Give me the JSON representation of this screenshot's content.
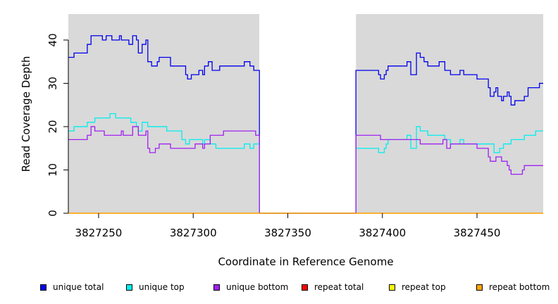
{
  "chart_data": {
    "type": "line",
    "xlabel": "Coordinate in Reference Genome",
    "ylabel": "Read Coverage Depth",
    "xlim": [
      3827234,
      3827485
    ],
    "ylim": [
      0,
      46
    ],
    "x_ticks": [
      3827250,
      3827300,
      3827350,
      3827400,
      3827450
    ],
    "x_tick_labels": [
      "3827250",
      "3827300",
      "3827350",
      "3827400",
      "3827450"
    ],
    "y_ticks": [
      0,
      10,
      20,
      30,
      40
    ],
    "y_tick_labels": [
      "0",
      "10",
      "20",
      "30",
      "40"
    ],
    "grid": false,
    "background": "#d9d9d9",
    "blank_region": [
      3827335,
      3827386
    ],
    "legend_position": "bottom",
    "series": [
      {
        "name": "unique total",
        "color": "#0000ee",
        "points": [
          [
            3827234,
            36
          ],
          [
            3827237,
            37
          ],
          [
            3827244,
            39
          ],
          [
            3827246,
            41
          ],
          [
            3827252,
            40
          ],
          [
            3827254,
            41
          ],
          [
            3827257,
            40
          ],
          [
            3827261,
            41
          ],
          [
            3827262,
            40
          ],
          [
            3827266,
            39
          ],
          [
            3827268,
            41
          ],
          [
            3827270,
            40
          ],
          [
            3827271,
            37
          ],
          [
            3827273,
            39
          ],
          [
            3827275,
            40
          ],
          [
            3827276,
            35
          ],
          [
            3827278,
            34
          ],
          [
            3827281,
            35
          ],
          [
            3827282,
            36
          ],
          [
            3827288,
            34
          ],
          [
            3827296,
            32
          ],
          [
            3827297,
            31
          ],
          [
            3827299,
            32
          ],
          [
            3827303,
            33
          ],
          [
            3827305,
            32
          ],
          [
            3827306,
            34
          ],
          [
            3827308,
            35
          ],
          [
            3827310,
            33
          ],
          [
            3827314,
            34
          ],
          [
            3827327,
            35
          ],
          [
            3827330,
            34
          ],
          [
            3827332,
            33
          ],
          [
            3827333,
            33
          ],
          [
            3827335,
            0
          ],
          [
            3827386,
            33
          ],
          [
            3827398,
            32
          ],
          [
            3827399,
            31
          ],
          [
            3827401,
            32
          ],
          [
            3827402,
            33
          ],
          [
            3827403,
            34
          ],
          [
            3827413,
            35
          ],
          [
            3827415,
            32
          ],
          [
            3827418,
            37
          ],
          [
            3827420,
            36
          ],
          [
            3827422,
            35
          ],
          [
            3827424,
            34
          ],
          [
            3827430,
            35
          ],
          [
            3827433,
            33
          ],
          [
            3827436,
            32
          ],
          [
            3827441,
            33
          ],
          [
            3827443,
            32
          ],
          [
            3827450,
            31
          ],
          [
            3827456,
            29
          ],
          [
            3827457,
            27
          ],
          [
            3827459,
            28
          ],
          [
            3827460,
            29
          ],
          [
            3827461,
            27
          ],
          [
            3827463,
            26
          ],
          [
            3827464,
            27
          ],
          [
            3827466,
            28
          ],
          [
            3827467,
            27
          ],
          [
            3827468,
            25
          ],
          [
            3827470,
            26
          ],
          [
            3827475,
            27
          ],
          [
            3827477,
            29
          ],
          [
            3827483,
            30
          ],
          [
            3827485,
            30
          ]
        ]
      },
      {
        "name": "unique top",
        "color": "#00eeee",
        "points": [
          [
            3827234,
            19
          ],
          [
            3827237,
            20
          ],
          [
            3827244,
            21
          ],
          [
            3827248,
            22
          ],
          [
            3827256,
            23
          ],
          [
            3827259,
            22
          ],
          [
            3827267,
            21
          ],
          [
            3827270,
            20
          ],
          [
            3827271,
            19
          ],
          [
            3827273,
            21
          ],
          [
            3827276,
            20
          ],
          [
            3827286,
            19
          ],
          [
            3827294,
            17
          ],
          [
            3827296,
            16
          ],
          [
            3827298,
            17
          ],
          [
            3827300,
            17
          ],
          [
            3827305,
            16
          ],
          [
            3827306,
            17
          ],
          [
            3827309,
            16
          ],
          [
            3827312,
            15
          ],
          [
            3827327,
            16
          ],
          [
            3827330,
            15
          ],
          [
            3827332,
            16
          ],
          [
            3827333,
            16
          ],
          [
            3827335,
            0
          ],
          [
            3827386,
            15
          ],
          [
            3827398,
            14
          ],
          [
            3827401,
            15
          ],
          [
            3827402,
            16
          ],
          [
            3827403,
            17
          ],
          [
            3827413,
            18
          ],
          [
            3827415,
            15
          ],
          [
            3827418,
            20
          ],
          [
            3827420,
            19
          ],
          [
            3827424,
            18
          ],
          [
            3827433,
            17
          ],
          [
            3827436,
            16
          ],
          [
            3827441,
            17
          ],
          [
            3827443,
            16
          ],
          [
            3827459,
            14
          ],
          [
            3827462,
            15
          ],
          [
            3827464,
            16
          ],
          [
            3827468,
            17
          ],
          [
            3827475,
            18
          ],
          [
            3827481,
            19
          ],
          [
            3827485,
            19
          ]
        ]
      },
      {
        "name": "unique bottom",
        "color": "#a020f0",
        "points": [
          [
            3827234,
            17
          ],
          [
            3827244,
            18
          ],
          [
            3827246,
            20
          ],
          [
            3827248,
            19
          ],
          [
            3827253,
            18
          ],
          [
            3827262,
            19
          ],
          [
            3827263,
            18
          ],
          [
            3827268,
            20
          ],
          [
            3827271,
            18
          ],
          [
            3827275,
            19
          ],
          [
            3827276,
            15
          ],
          [
            3827277,
            14
          ],
          [
            3827280,
            15
          ],
          [
            3827282,
            16
          ],
          [
            3827288,
            15
          ],
          [
            3827301,
            16
          ],
          [
            3827305,
            15
          ],
          [
            3827306,
            16
          ],
          [
            3827309,
            18
          ],
          [
            3827316,
            19
          ],
          [
            3827333,
            18
          ],
          [
            3827335,
            0
          ],
          [
            3827386,
            18
          ],
          [
            3827399,
            17
          ],
          [
            3827420,
            16
          ],
          [
            3827432,
            17
          ],
          [
            3827434,
            15
          ],
          [
            3827436,
            16
          ],
          [
            3827450,
            15
          ],
          [
            3827456,
            13
          ],
          [
            3827457,
            12
          ],
          [
            3827460,
            13
          ],
          [
            3827463,
            12
          ],
          [
            3827466,
            11
          ],
          [
            3827467,
            10
          ],
          [
            3827468,
            9
          ],
          [
            3827474,
            10
          ],
          [
            3827475,
            11
          ],
          [
            3827485,
            11
          ]
        ]
      },
      {
        "name": "repeat total",
        "color": "#ff0000",
        "points": [
          [
            3827234,
            0
          ],
          [
            3827485,
            0
          ]
        ]
      },
      {
        "name": "repeat top",
        "color": "#ffff00",
        "points": [
          [
            3827234,
            0
          ],
          [
            3827485,
            0
          ]
        ]
      },
      {
        "name": "repeat bottom",
        "color": "#ffa500",
        "points": [
          [
            3827234,
            0
          ],
          [
            3827485,
            0
          ]
        ]
      }
    ]
  }
}
